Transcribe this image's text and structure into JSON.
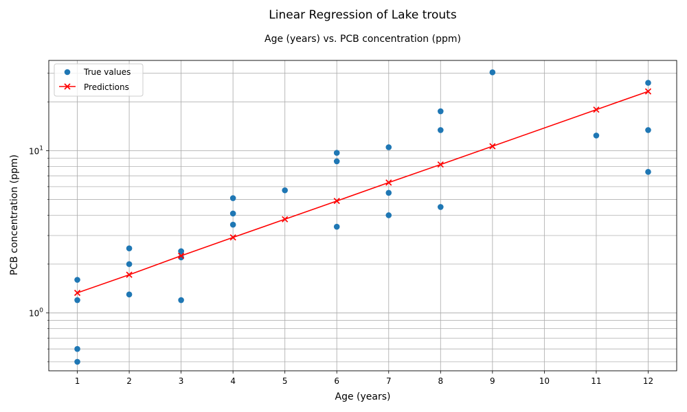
{
  "chart_data": {
    "type": "scatter",
    "suptitle": "Linear Regression of Lake trouts",
    "title": "Age (years) vs. PCB concentration (ppm)",
    "xlabel": "Age (years)",
    "ylabel": "PCB concentration (ppm)",
    "xlim": [
      0.45,
      12.55
    ],
    "ylim": [
      0.44,
      36
    ],
    "yscale": "log",
    "grid": true,
    "legend_position": "upper-left",
    "x_ticks": [
      1,
      2,
      3,
      4,
      5,
      6,
      7,
      8,
      9,
      10,
      11,
      12
    ],
    "y_major_ticks": [
      {
        "value": 1,
        "label": "10^0"
      },
      {
        "value": 10,
        "label": "10^1"
      }
    ],
    "y_minor_ticks": [
      0.5,
      0.6,
      0.7,
      0.8,
      0.9,
      2,
      3,
      4,
      5,
      6,
      7,
      8,
      9,
      20,
      30
    ],
    "series": [
      {
        "name": "True values",
        "kind": "scatter",
        "color": "#1f77b4",
        "points": [
          [
            1,
            0.6
          ],
          [
            1,
            1.6
          ],
          [
            1,
            0.5
          ],
          [
            1,
            1.2
          ],
          [
            2,
            2.0
          ],
          [
            2,
            1.3
          ],
          [
            2,
            2.5
          ],
          [
            3,
            1.2
          ],
          [
            3,
            2.2
          ],
          [
            3,
            2.4
          ],
          [
            3,
            2.4
          ],
          [
            4,
            3.5
          ],
          [
            4,
            4.1
          ],
          [
            4,
            5.1
          ],
          [
            5,
            5.7
          ],
          [
            6,
            9.7
          ],
          [
            6,
            8.6
          ],
          [
            6,
            3.4
          ],
          [
            7,
            4.0
          ],
          [
            7,
            5.5
          ],
          [
            7,
            10.5
          ],
          [
            8,
            17.5
          ],
          [
            8,
            13.4
          ],
          [
            8,
            4.5
          ],
          [
            9,
            30.4
          ],
          [
            11,
            12.4
          ],
          [
            12,
            13.4
          ],
          [
            12,
            26.2
          ],
          [
            12,
            7.4
          ]
        ]
      },
      {
        "name": "Predictions",
        "kind": "line",
        "marker": "x",
        "color": "#ff0000",
        "points": [
          [
            1,
            1.33
          ],
          [
            2,
            1.72
          ],
          [
            3,
            2.25
          ],
          [
            4,
            2.92
          ],
          [
            5,
            3.78
          ],
          [
            6,
            4.9
          ],
          [
            7,
            6.36
          ],
          [
            8,
            8.22
          ],
          [
            9,
            10.65
          ],
          [
            11,
            17.9
          ],
          [
            12,
            23.2
          ]
        ]
      }
    ]
  }
}
